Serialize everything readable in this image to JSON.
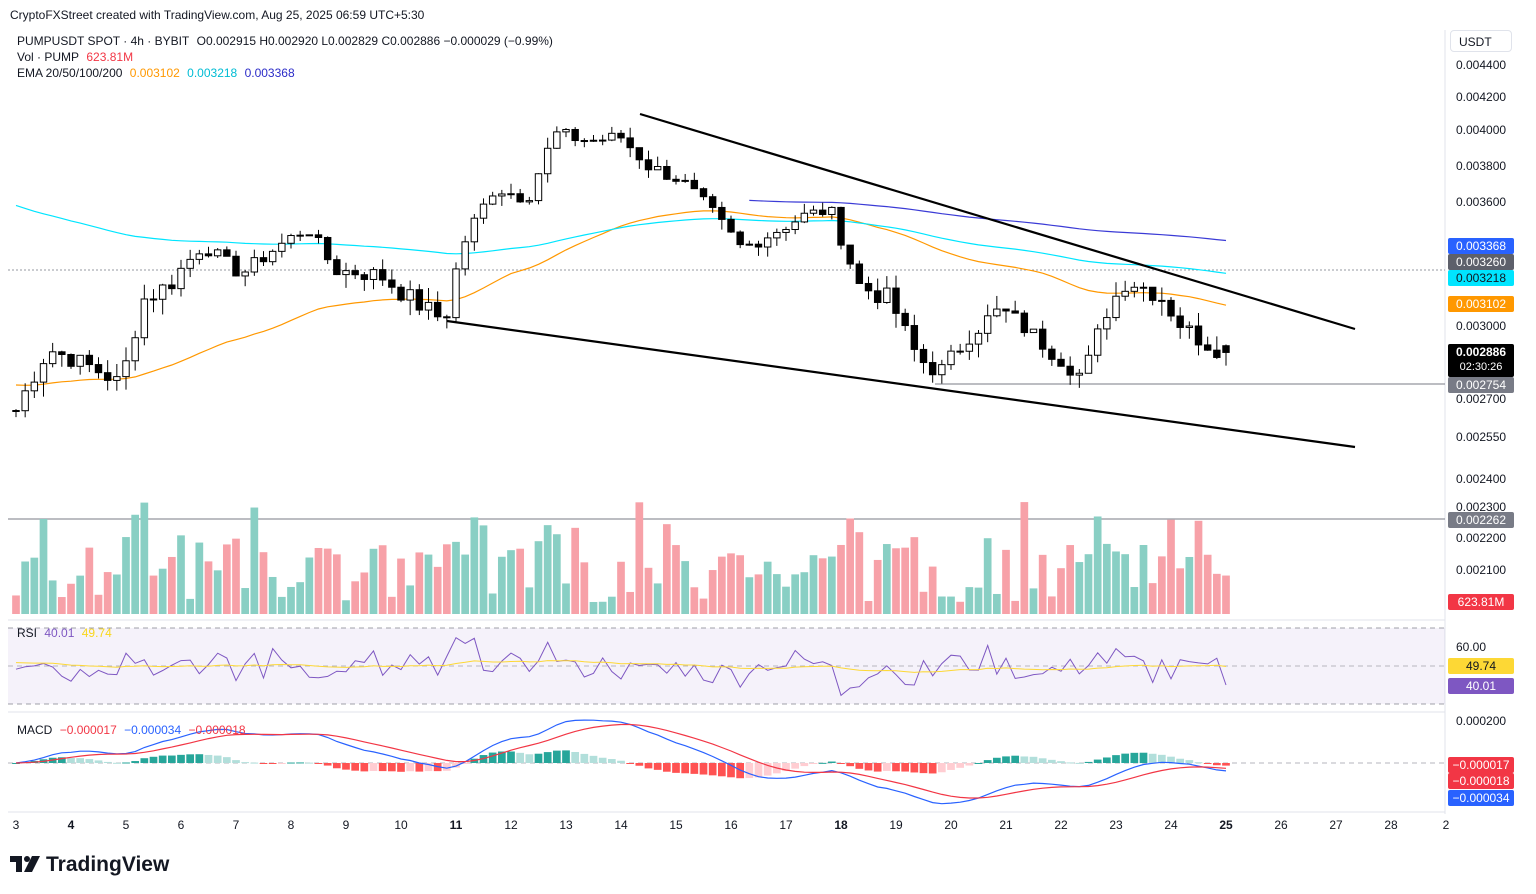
{
  "header": {
    "attribution": "CryptoFXStreet created with TradingView.com, Aug 25, 2025 06:59 UTC+5:30"
  },
  "legend": {
    "symbol": "PUMPUSDT SPOT · 4h · BYBIT",
    "ohlc": "O0.002915 H0.002920 L0.002829 C0.002886 −0.000029 (−0.99%)",
    "vol_label": "Vol · PUMP",
    "vol_value": "623.81M",
    "ema_label": "EMA 20/50/100/200",
    "ema_values": [
      "0.003102",
      "0.003218",
      "0.003368"
    ]
  },
  "currency": "USDT",
  "price_axis": [
    "0.004400",
    "0.004200",
    "0.004000",
    "0.003800",
    "0.003600",
    "0.003000",
    "0.002700",
    "0.002550",
    "0.002400",
    "0.002300",
    "0.002200",
    "0.002100"
  ],
  "price_tags": {
    "ema200": "0.003368",
    "ref_line": "0.003260",
    "ema100": "0.003218",
    "ema50": "0.003102",
    "last": "0.002886",
    "countdown": "02:30:26",
    "support": "0.002754",
    "lower_line": "0.002262",
    "volume": "623.81M"
  },
  "rsi": {
    "label": "RSI",
    "value": "40.01",
    "ma_value": "49.74",
    "axis_label": "60.00",
    "tag_ma": "49.74",
    "tag_rsi": "40.01"
  },
  "macd": {
    "label": "MACD",
    "hist": "−0.000017",
    "macd": "−0.000034",
    "signal": "−0.000018",
    "axis_label": "0.000200",
    "tag_hist": "−0.000017",
    "tag_signal": "−0.000018",
    "tag_macd": "−0.000034"
  },
  "x_axis": [
    {
      "label": "3",
      "bold": false
    },
    {
      "label": "4",
      "bold": true
    },
    {
      "label": "5",
      "bold": false
    },
    {
      "label": "6",
      "bold": false
    },
    {
      "label": "7",
      "bold": false
    },
    {
      "label": "8",
      "bold": false
    },
    {
      "label": "9",
      "bold": false
    },
    {
      "label": "10",
      "bold": false
    },
    {
      "label": "11",
      "bold": true
    },
    {
      "label": "12",
      "bold": false
    },
    {
      "label": "13",
      "bold": false
    },
    {
      "label": "14",
      "bold": false
    },
    {
      "label": "15",
      "bold": false
    },
    {
      "label": "16",
      "bold": false
    },
    {
      "label": "17",
      "bold": false
    },
    {
      "label": "18",
      "bold": true
    },
    {
      "label": "19",
      "bold": false
    },
    {
      "label": "20",
      "bold": false
    },
    {
      "label": "21",
      "bold": false
    },
    {
      "label": "22",
      "bold": false
    },
    {
      "label": "23",
      "bold": false
    },
    {
      "label": "24",
      "bold": false
    },
    {
      "label": "25",
      "bold": true
    },
    {
      "label": "26",
      "bold": false
    },
    {
      "label": "27",
      "bold": false
    },
    {
      "label": "28",
      "bold": false
    },
    {
      "label": "2",
      "bold": false
    }
  ],
  "logo": "TradingView",
  "colors": {
    "up": "#089981",
    "down": "#f23645",
    "vol_up": "#89cfc4",
    "vol_down": "#f7a1a8",
    "ema50": "#ff9800",
    "ema100": "#00e5ff",
    "ema200": "#3b3bd6",
    "rsi": "#7e57c2",
    "rsi_ma": "#fdd835",
    "macd": "#2962ff",
    "signal": "#f23645",
    "hist_up": "#26a69a",
    "hist_up_light": "#b2dfdb",
    "hist_down": "#ff5252",
    "hist_down_light": "#ffcdd2"
  },
  "chart_data": {
    "type": "candlestick",
    "title": "PUMPUSDT SPOT · 4h · BYBIT",
    "timeframe": "4h",
    "x_range": [
      "Aug 3",
      "Sep 2"
    ],
    "ylabel": "USDT",
    "ylim": [
      0.002,
      0.0045
    ],
    "close_path": [
      {
        "day": 3.0,
        "close": 0.00265
      },
      {
        "day": 3.6,
        "close": 0.0029
      },
      {
        "day": 4.4,
        "close": 0.00282
      },
      {
        "day": 4.9,
        "close": 0.00275
      },
      {
        "day": 5.3,
        "close": 0.0031
      },
      {
        "day": 5.8,
        "close": 0.00316
      },
      {
        "day": 6.4,
        "close": 0.00336
      },
      {
        "day": 7.1,
        "close": 0.0032
      },
      {
        "day": 7.7,
        "close": 0.00334
      },
      {
        "day": 8.3,
        "close": 0.00346
      },
      {
        "day": 8.8,
        "close": 0.00322
      },
      {
        "day": 9.6,
        "close": 0.0032
      },
      {
        "day": 10.2,
        "close": 0.0031
      },
      {
        "day": 10.8,
        "close": 0.00302
      },
      {
        "day": 11.2,
        "close": 0.00342
      },
      {
        "day": 11.7,
        "close": 0.00368
      },
      {
        "day": 12.3,
        "close": 0.00362
      },
      {
        "day": 12.8,
        "close": 0.00398
      },
      {
        "day": 13.4,
        "close": 0.00394
      },
      {
        "day": 14.0,
        "close": 0.00396
      },
      {
        "day": 14.5,
        "close": 0.0038
      },
      {
        "day": 15.1,
        "close": 0.00372
      },
      {
        "day": 15.6,
        "close": 0.00356
      },
      {
        "day": 16.2,
        "close": 0.00334
      },
      {
        "day": 16.7,
        "close": 0.00342
      },
      {
        "day": 17.3,
        "close": 0.00352
      },
      {
        "day": 17.8,
        "close": 0.00356
      },
      {
        "day": 18.3,
        "close": 0.00316
      },
      {
        "day": 18.9,
        "close": 0.0031
      },
      {
        "day": 19.4,
        "close": 0.00286
      },
      {
        "day": 19.8,
        "close": 0.0028
      },
      {
        "day": 20.4,
        "close": 0.00298
      },
      {
        "day": 20.9,
        "close": 0.00306
      },
      {
        "day": 21.3,
        "close": 0.003
      },
      {
        "day": 21.8,
        "close": 0.0029
      },
      {
        "day": 22.4,
        "close": 0.00278
      },
      {
        "day": 22.8,
        "close": 0.00305
      },
      {
        "day": 23.2,
        "close": 0.00318
      },
      {
        "day": 23.8,
        "close": 0.00312
      },
      {
        "day": 24.2,
        "close": 0.003
      },
      {
        "day": 24.6,
        "close": 0.00293
      },
      {
        "day": 25.0,
        "close": 0.002886
      }
    ],
    "emas": {
      "EMA 50": 0.003102,
      "EMA 100": 0.003218,
      "EMA 200": 0.003368
    },
    "levels": {
      "horizontal_ref": 0.00326,
      "support": 0.002754,
      "lower_line": 0.002262
    },
    "falling_wedge": {
      "upper": [
        {
          "day": 14.4,
          "price": 0.0041
        },
        {
          "day": 27.3,
          "price": 0.00299
        }
      ],
      "lower": [
        {
          "day": 10.8,
          "price": 0.00302
        },
        {
          "day": 27.3,
          "price": 0.00253
        }
      ]
    },
    "last": {
      "open": 0.002915,
      "high": 0.00292,
      "low": 0.002829,
      "close": 0.002886,
      "change": -2.9e-05,
      "change_pct": -0.99
    },
    "volume_last": "623.81M",
    "rsi": {
      "rsi": 40.01,
      "ma": 49.74,
      "levels": [
        70,
        50,
        30
      ]
    },
    "macd_values": {
      "histogram": -1.7e-05,
      "macd": -3.4e-05,
      "signal": -1.8e-05
    }
  }
}
